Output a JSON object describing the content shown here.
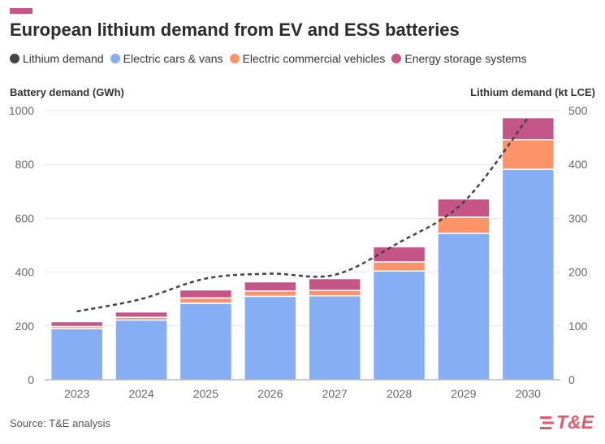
{
  "title": "European lithium demand from EV and ESS batteries",
  "legend": [
    {
      "label": "Lithium demand",
      "color": "#444444"
    },
    {
      "label": "Electric cars & vans",
      "color": "#86aef5"
    },
    {
      "label": "Electric commercial vehicles",
      "color": "#fd9468"
    },
    {
      "label": "Energy storage systems",
      "color": "#c45586"
    }
  ],
  "left_axis_title": "Battery demand (GWh)",
  "right_axis_title": "Lithium demand (kt LCE)",
  "source": "Source: T&E analysis",
  "logo_text": "T&E",
  "colors": {
    "accent": "#c45586",
    "logo": "#e35a6e"
  },
  "chart_data": {
    "type": "bar",
    "stacked": true,
    "categories": [
      "2023",
      "2024",
      "2025",
      "2026",
      "2027",
      "2028",
      "2029",
      "2030"
    ],
    "series": [
      {
        "name": "Electric cars & vans",
        "color": "#86aef5",
        "values": [
          190,
          222,
          284,
          310,
          312,
          404,
          544,
          782
        ]
      },
      {
        "name": "Electric commercial vehicles",
        "color": "#fd9468",
        "values": [
          8,
          10,
          20,
          20,
          20,
          34,
          60,
          110
        ]
      },
      {
        "name": "Energy storage systems",
        "color": "#c45586",
        "values": [
          18,
          20,
          30,
          34,
          44,
          56,
          68,
          82
        ]
      }
    ],
    "line": {
      "name": "Lithium demand",
      "color": "#444444",
      "axis": "right",
      "values": [
        127,
        150,
        188,
        197,
        195,
        255,
        330,
        487
      ]
    },
    "ylim": [
      0,
      1000
    ],
    "yticks": [
      0,
      200,
      400,
      600,
      800,
      1000
    ],
    "y2lim": [
      0,
      500
    ],
    "y2ticks": [
      0,
      100,
      200,
      300,
      400,
      500
    ],
    "ylabel": "Battery demand (GWh)",
    "y2label": "Lithium demand (kt LCE)",
    "grid": true,
    "legend_position": "top"
  }
}
